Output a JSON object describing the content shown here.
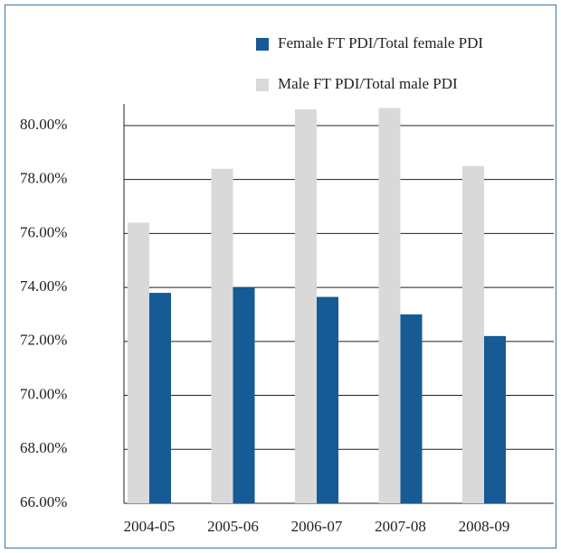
{
  "chart_data": {
    "type": "bar",
    "categories": [
      "2004-05",
      "2005-06",
      "2006-07",
      "2007-08",
      "2008-09"
    ],
    "series": [
      {
        "name": "Female FT PDI/Total female PDI",
        "color": "#165a96",
        "values": [
          73.8,
          74.0,
          73.65,
          73.0,
          72.2
        ]
      },
      {
        "name": "Male FT PDI/Total male PDI",
        "color": "#d9d9da",
        "values": [
          76.4,
          78.4,
          80.6,
          80.65,
          78.5
        ]
      }
    ],
    "ylim": [
      66,
      80.8
    ],
    "yticks": [
      {
        "value": 66,
        "label": "66.00%"
      },
      {
        "value": 68,
        "label": "68.00%"
      },
      {
        "value": 70,
        "label": "70.00%"
      },
      {
        "value": 72,
        "label": "72.00%"
      },
      {
        "value": 74,
        "label": "74.00%"
      },
      {
        "value": 76,
        "label": "76.00%"
      },
      {
        "value": 78,
        "label": "78.00%"
      },
      {
        "value": 80,
        "label": "80.00%"
      }
    ],
    "grid": true
  }
}
